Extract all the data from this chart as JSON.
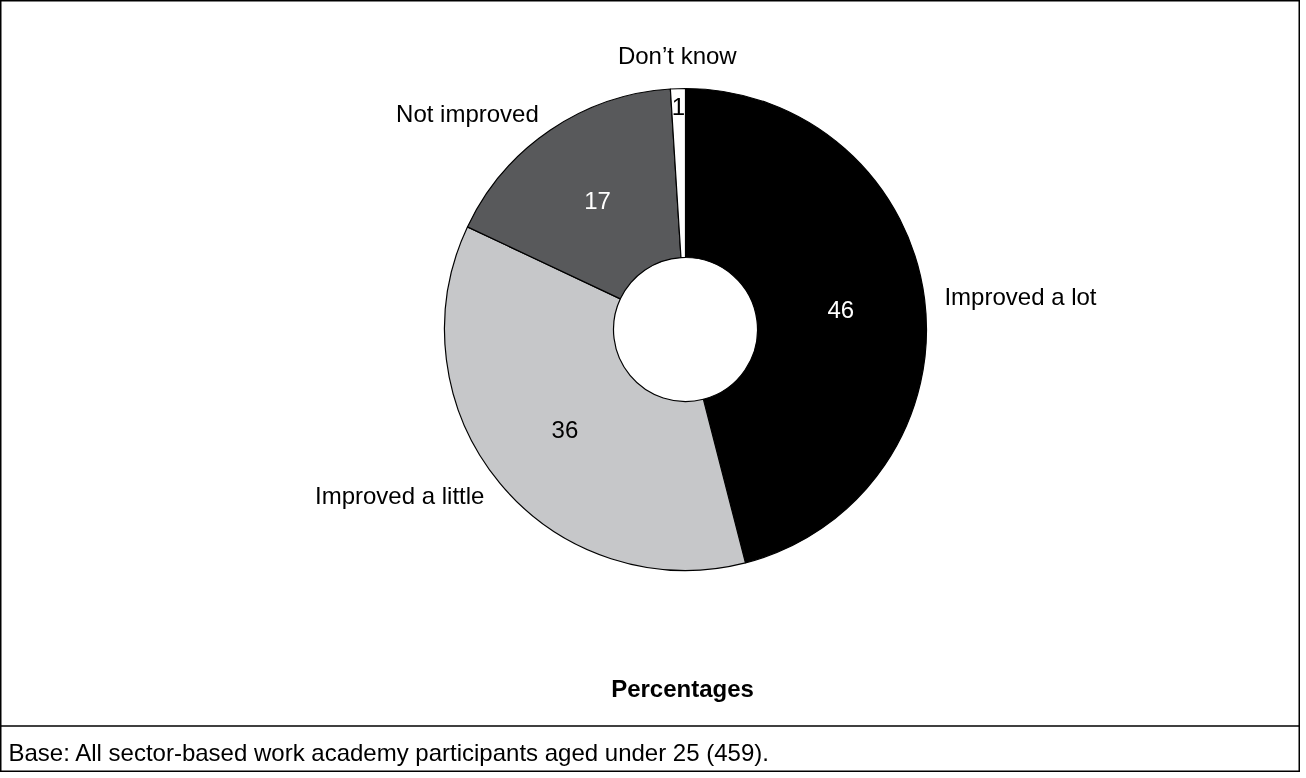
{
  "chart_data": {
    "type": "donut",
    "categories": [
      "Improved a lot",
      "Improved a little",
      "Not improved",
      "Don’t know"
    ],
    "values": [
      46,
      36,
      17,
      1
    ],
    "colors": [
      "#000000",
      "#c6c7c9",
      "#58595b",
      "#ffffff"
    ],
    "data_labels": true,
    "xlabel": "Percentages",
    "annotations": [
      "Base: All sector-based work academy participants aged under 25 (459)."
    ]
  }
}
